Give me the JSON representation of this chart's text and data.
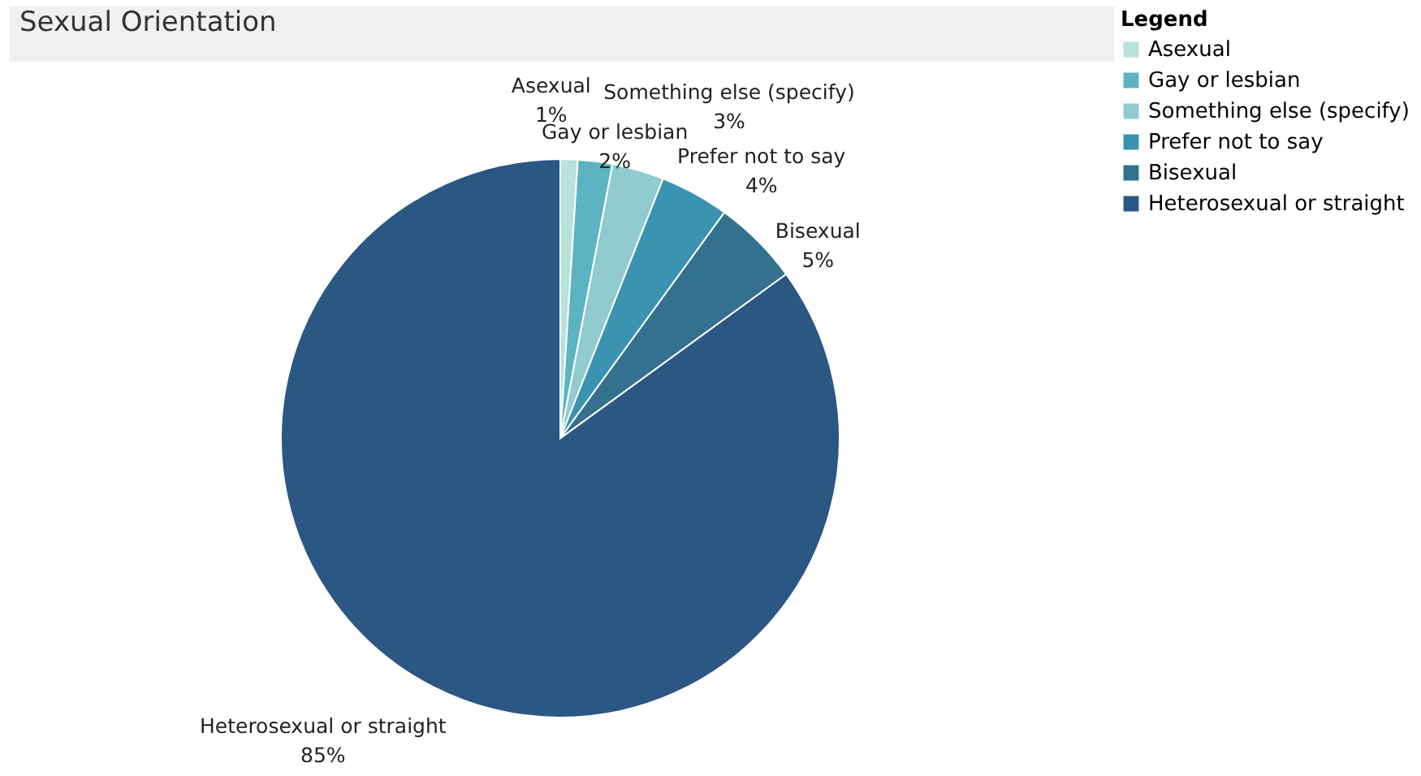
{
  "chart_data": {
    "type": "pie",
    "title": "Sexual Orientation",
    "legend_title": "Legend",
    "legend": "top right",
    "categories": [
      "Asexual",
      "Gay or lesbian",
      "Something else (specify)",
      "Prefer not to say",
      "Bisexual",
      "Heterosexual or straight"
    ],
    "values": [
      1,
      2,
      3,
      4,
      5,
      85
    ],
    "value_labels": [
      "1%",
      "2%",
      "3%",
      "4%",
      "5%",
      "85%"
    ],
    "colors": [
      "#b7e3d8",
      "#5cb3c2",
      "#8fcbcf",
      "#3a93b0",
      "#33718f",
      "#2a5783"
    ]
  }
}
